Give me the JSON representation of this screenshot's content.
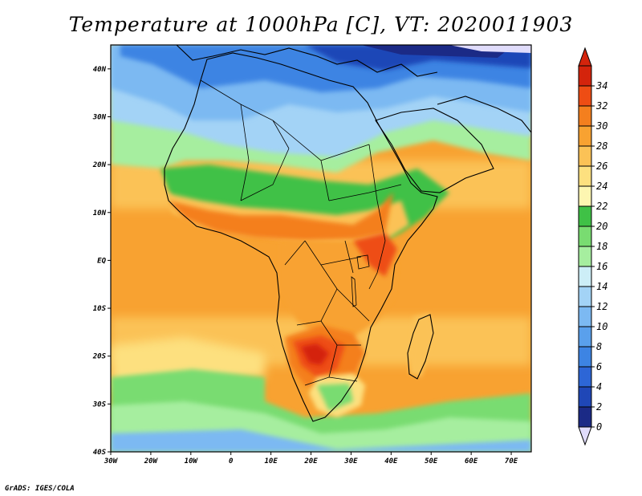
{
  "title": "Temperature at 1000hPa [C], VT: 2020011903",
  "credit": "GrADS: IGES/COLA",
  "map": {
    "lon_range": [
      -30,
      75
    ],
    "lat_range": [
      -40,
      45
    ],
    "lat_ticks": [
      {
        "value": 40,
        "label": "40N"
      },
      {
        "value": 30,
        "label": "30N"
      },
      {
        "value": 20,
        "label": "20N"
      },
      {
        "value": 10,
        "label": "10N"
      },
      {
        "value": 0,
        "label": "EQ"
      },
      {
        "value": -10,
        "label": "10S"
      },
      {
        "value": -20,
        "label": "20S"
      },
      {
        "value": -30,
        "label": "30S"
      },
      {
        "value": -40,
        "label": "40S"
      }
    ],
    "lon_ticks": [
      {
        "value": -30,
        "label": "30W"
      },
      {
        "value": -20,
        "label": "20W"
      },
      {
        "value": -10,
        "label": "10W"
      },
      {
        "value": 0,
        "label": "0"
      },
      {
        "value": 10,
        "label": "10E"
      },
      {
        "value": 20,
        "label": "20E"
      },
      {
        "value": 30,
        "label": "30E"
      },
      {
        "value": 40,
        "label": "40E"
      },
      {
        "value": 50,
        "label": "50E"
      },
      {
        "value": 60,
        "label": "60E"
      },
      {
        "value": 70,
        "label": "70E"
      }
    ]
  },
  "colorbar": {
    "levels": [
      "0",
      "2",
      "4",
      "6",
      "8",
      "10",
      "12",
      "14",
      "16",
      "18",
      "20",
      "22",
      "24",
      "26",
      "28",
      "30",
      "32",
      "34"
    ],
    "colors": [
      "#1b2a86",
      "#1f47b7",
      "#2d66d6",
      "#3d84e3",
      "#5aa0ec",
      "#7cb9f2",
      "#a3d3f6",
      "#cdeef7",
      "#a6ee9f",
      "#79dc71",
      "#3fc146",
      "#fdf6b1",
      "#fde07f",
      "#fbc256",
      "#f8a231",
      "#f47f1e",
      "#ee4d14",
      "#d4240c"
    ],
    "under_color": "#e0dcfb",
    "over_color": "#d4240c"
  }
}
